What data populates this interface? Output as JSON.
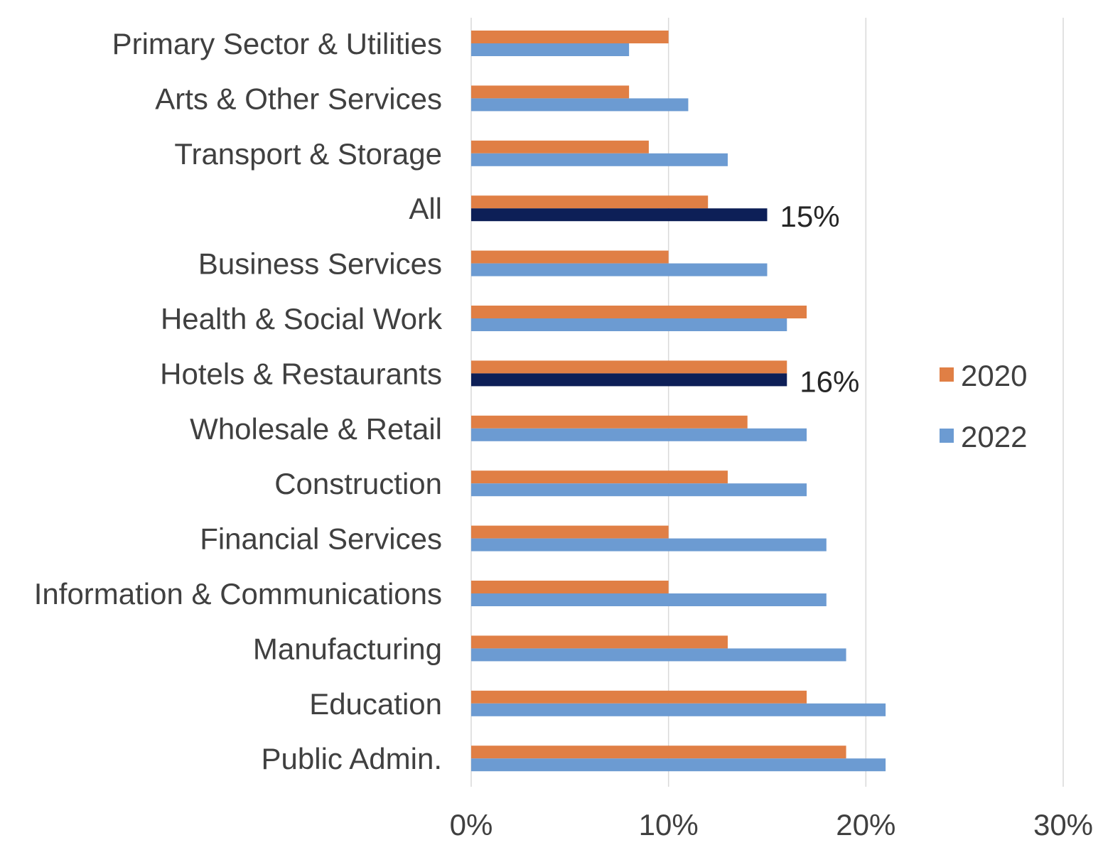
{
  "chart_data": {
    "type": "bar",
    "orientation": "horizontal",
    "categories": [
      "Primary Sector & Utilities",
      "Arts & Other Services",
      "Transport & Storage",
      "All",
      "Business Services",
      "Health & Social Work",
      "Hotels & Restaurants",
      "Wholesale & Retail",
      "Construction",
      "Financial Services",
      "Information & Communications",
      "Manufacturing",
      "Education",
      "Public Admin."
    ],
    "series": [
      {
        "name": "2020",
        "color": "#E07F45",
        "values": [
          10,
          8,
          9,
          12,
          10,
          17,
          16,
          14,
          13,
          10,
          10,
          13,
          17,
          19
        ]
      },
      {
        "name": "2022",
        "color": "#6C9BD2",
        "highlight_color": "#0D1F57",
        "highlight_categories": [
          "All",
          "Hotels & Restaurants"
        ],
        "values": [
          8,
          11,
          13,
          15,
          15,
          16,
          16,
          17,
          17,
          18,
          18,
          19,
          21,
          21
        ]
      }
    ],
    "data_labels": [
      {
        "category": "All",
        "series": "2022",
        "text": "15%"
      },
      {
        "category": "Hotels & Restaurants",
        "series": "2022",
        "text": "16%"
      }
    ],
    "x_ticks": [
      {
        "value": 0,
        "label": "0%"
      },
      {
        "value": 10,
        "label": "10%"
      },
      {
        "value": 20,
        "label": "20%"
      },
      {
        "value": 30,
        "label": "30%"
      }
    ],
    "xlim": [
      0,
      30
    ],
    "title": "",
    "xlabel": "",
    "ylabel": "",
    "grid": "vertical",
    "gridline_color": "#D9D9D9",
    "legend": {
      "placement": "right",
      "entries": [
        {
          "name": "2020",
          "color": "#E07F45"
        },
        {
          "name": "2022",
          "color": "#6C9BD2"
        }
      ]
    }
  }
}
